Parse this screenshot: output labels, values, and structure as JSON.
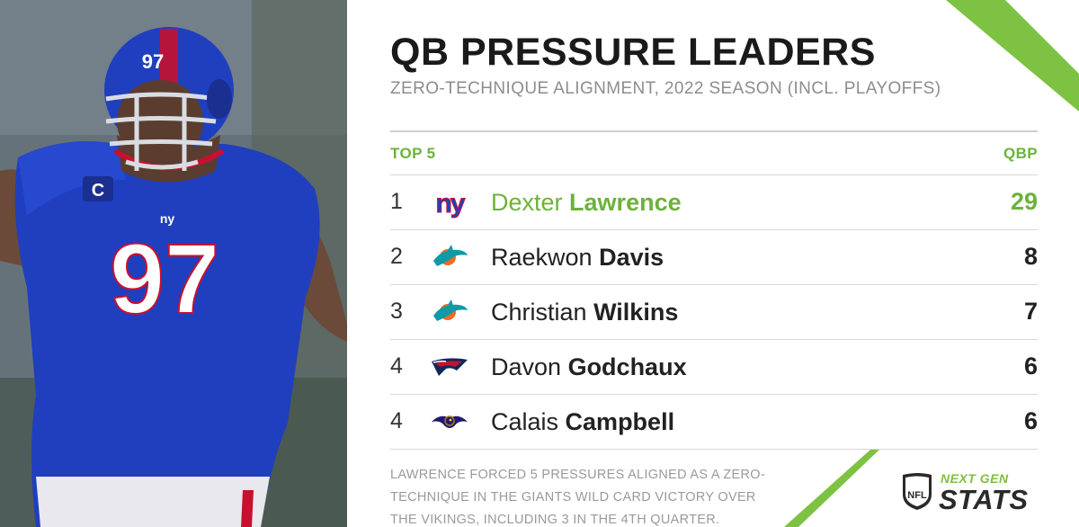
{
  "header": {
    "title": "QB PRESSURE LEADERS",
    "subtitle": "ZERO-TECHNIQUE ALIGNMENT, 2022 SEASON (INCL. PLAYOFFS)"
  },
  "table": {
    "left_header": "TOP 5",
    "right_header": "QBP",
    "rows": [
      {
        "rank": "1",
        "team_logo": "giants-logo",
        "first": "Dexter",
        "last": "Lawrence",
        "value": "29",
        "highlight": true
      },
      {
        "rank": "2",
        "team_logo": "dolphins-logo",
        "first": "Raekwon",
        "last": "Davis",
        "value": "8",
        "highlight": false
      },
      {
        "rank": "3",
        "team_logo": "dolphins-logo",
        "first": "Christian",
        "last": "Wilkins",
        "value": "7",
        "highlight": false
      },
      {
        "rank": "4",
        "team_logo": "patriots-logo",
        "first": "Davon",
        "last": "Godchaux",
        "value": "6",
        "highlight": false
      },
      {
        "rank": "4",
        "team_logo": "ravens-logo",
        "first": "Calais",
        "last": "Campbell",
        "value": "6",
        "highlight": false
      }
    ]
  },
  "footnote": "LAWRENCE FORCED 5 PRESSURES ALIGNED AS A ZERO-TECHNIQUE IN THE GIANTS WILD CARD VICTORY OVER THE VIKINGS, INCLUDING 3 IN THE 4TH QUARTER.",
  "photo": {
    "jersey_number": "97",
    "captain_patch": "C",
    "team_mark": "ny"
  },
  "brand": {
    "top": "NEXT GEN",
    "bottom": "STATS",
    "shield_text": "NFL"
  },
  "colors": {
    "accent": "#6db23a",
    "giants_blue": "#1f3fbf",
    "giants_red": "#c8102e",
    "dolphins_aqua": "#0e9aa7",
    "dolphins_orange": "#f26a24",
    "patriots_navy": "#0b2a5b",
    "ravens_purple": "#241773"
  }
}
